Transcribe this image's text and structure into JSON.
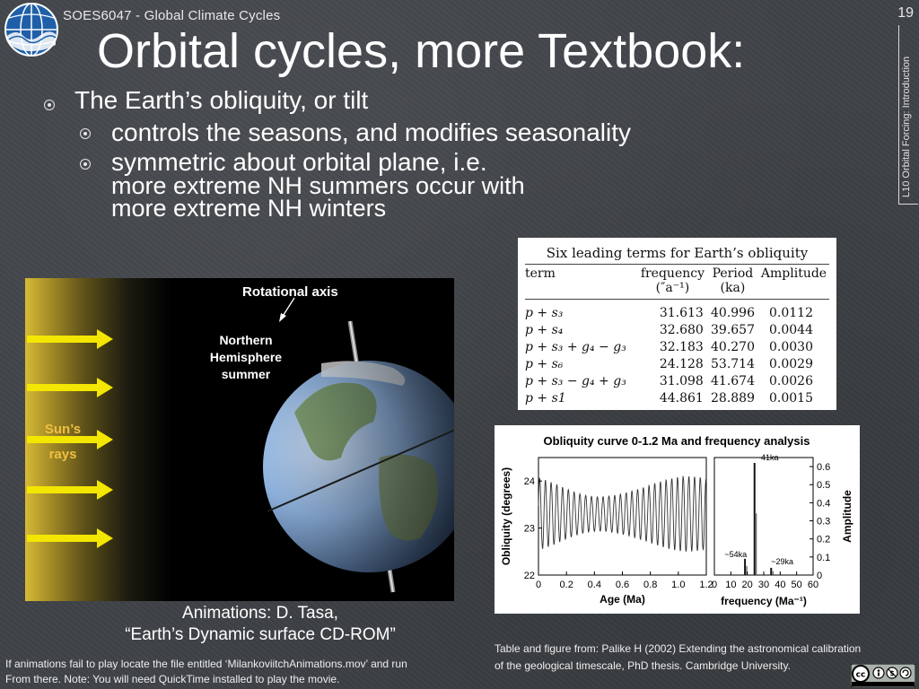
{
  "header": {
    "course": "SOES6047 - Global Climate Cycles",
    "slide_number": "19",
    "side_label": "L10 Orbital Forcing: Introduction",
    "logo_icon": "globe-logo-icon"
  },
  "title": "Orbital cycles, more Textbook:",
  "bullets": {
    "main": "The Earth’s obliquity, or tilt",
    "sub1": "controls the seasons, and modifies seasonality",
    "sub2_line1": "symmetric about orbital plane, i.e.",
    "sub2_line2": "more extreme NH summers occur with",
    "sub2_line3": "more extreme NH winters"
  },
  "image": {
    "rotational_axis": "Rotational axis",
    "nh_line1": "Northern",
    "nh_line2": "Hemisphere",
    "nh_line3": "summer",
    "sun_line1": "Sun’s",
    "sun_line2": "rays"
  },
  "credit": {
    "line1": "Animations: D. Tasa,",
    "line2": "“Earth’s Dynamic surface CD-ROM”"
  },
  "anim_note": {
    "line1": "If animations fail to play locate the file entitled ‘MilankoviitchAnimations.mov’ and run",
    "line2": "From there. Note: You will need QuickTime installed to play the movie."
  },
  "table": {
    "title": "Six leading terms for Earth’s obliquity",
    "headers": {
      "term": "term",
      "frequency": "frequency",
      "frequency_unit": "(″a⁻¹)",
      "period": "Period",
      "period_unit": "(ka)",
      "amplitude": "Amplitude"
    },
    "rows": [
      {
        "term": "p + s₃",
        "frequency": "31.613",
        "period": "40.996",
        "amplitude": "0.0112"
      },
      {
        "term": "p + s₄",
        "frequency": "32.680",
        "period": "39.657",
        "amplitude": "0.0044"
      },
      {
        "term": "p + s₃ + g₄ − g₃",
        "frequency": "32.183",
        "period": "40.270",
        "amplitude": "0.0030"
      },
      {
        "term": "p + s₆",
        "frequency": "24.128",
        "period": "53.714",
        "amplitude": "0.0029"
      },
      {
        "term": "p + s₃ − g₄ + g₃",
        "frequency": "31.098",
        "period": "41.674",
        "amplitude": "0.0026"
      },
      {
        "term": "p + s1",
        "frequency": "44.861",
        "period": "28.889",
        "amplitude": "0.0015"
      }
    ]
  },
  "chart_data": [
    {
      "type": "line",
      "title": "Obliquity curve 0-1.2 Ma and frequency analysis",
      "xlabel": "Age (Ma)",
      "ylabel": "Obliquity (degrees)",
      "xlim": [
        0,
        1.2
      ],
      "ylim": [
        22,
        24.5
      ],
      "x_ticks": [
        "0",
        "0.2",
        "0.4",
        "0.6",
        "0.8",
        "1.0",
        "1.2"
      ],
      "y_ticks": [
        "22",
        "23",
        "24"
      ],
      "series": [
        {
          "period_ka": 41,
          "mean_deg": 23.3,
          "amplitude_deg": 0.85
        }
      ]
    },
    {
      "type": "line",
      "xlabel": "frequency (Ma⁻¹)",
      "ylabel": "Amplitude",
      "xlim": [
        0,
        60
      ],
      "ylim": [
        0,
        0.65
      ],
      "x_ticks": [
        "0",
        "10",
        "20",
        "30",
        "40",
        "50",
        "60"
      ],
      "y_ticks": [
        "0",
        "0.1",
        "0.2",
        "0.3",
        "0.4",
        "0.5",
        "0.6"
      ],
      "peaks": [
        {
          "label": "~41ka",
          "frequency": 24.4,
          "amplitude": 0.62
        },
        {
          "label": "~54ka",
          "frequency": 18.6,
          "amplitude": 0.09
        },
        {
          "label": "~29ka",
          "frequency": 34.5,
          "amplitude": 0.04
        }
      ]
    }
  ],
  "source": {
    "line1": "Table and figure from: Palike H (2002) Extending the astronomical calibration",
    "line2": "of the geological timescale, PhD thesis. Cambridge University.",
    "license_icon": "cc-by-nc-sa-icon"
  }
}
